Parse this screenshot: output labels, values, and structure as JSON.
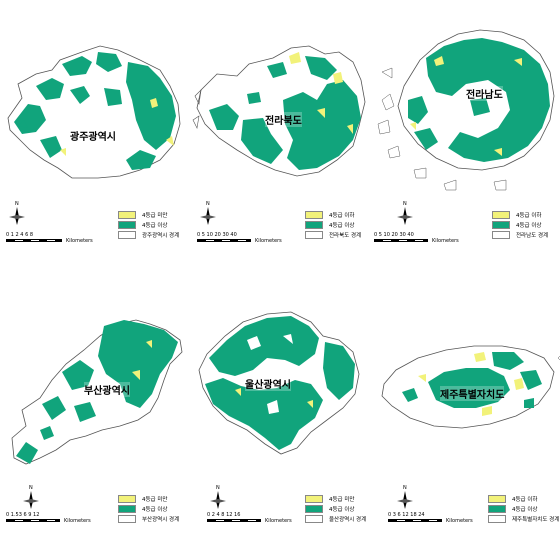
{
  "colors": {
    "below_grade4": "#f2f27a",
    "above_grade4": "#11a47c",
    "boundary_fill": "#ffffff",
    "boundary_stroke": "#555555"
  },
  "north_symbol": "north-arrow-compass",
  "panels": [
    {
      "region": "광주광역시",
      "legend": {
        "low": "4등급 미만",
        "high": "4등급 이상",
        "boundary": "광주광역시 경계"
      },
      "scale": {
        "ticks": "0 1 2    4     6     8",
        "unit": "Kilometers"
      }
    },
    {
      "region": "전라북도",
      "legend": {
        "low": "4등급 이하",
        "high": "4등급 이상",
        "boundary": "전라북도 경계"
      },
      "scale": {
        "ticks": "0 5 10   20    30   40",
        "unit": "Kilometers"
      }
    },
    {
      "region": "전라남도",
      "legend": {
        "low": "4등급 이하",
        "high": "4등급 이상",
        "boundary": "전라남도 경계"
      },
      "scale": {
        "ticks": "0 5 10   20    30   40",
        "unit": "Kilometers"
      }
    },
    {
      "region": "부산광역시",
      "legend": {
        "low": "4등급 미만",
        "high": "4등급 이상",
        "boundary": "부산광역시 경계"
      },
      "scale": {
        "ticks": "0 1.53    6     9    12",
        "unit": "Kilometers"
      }
    },
    {
      "region": "울산광역시",
      "legend": {
        "low": "4등급 미만",
        "high": "4등급 이상",
        "boundary": "울산광역시 경계"
      },
      "scale": {
        "ticks": "0 2 4    8    12   16",
        "unit": "Kilometers"
      }
    },
    {
      "region": "제주특별자치도",
      "legend": {
        "low": "4등급 이하",
        "high": "4등급 이상",
        "boundary": "제주특별자치도 경계"
      },
      "scale": {
        "ticks": "0 3 6   12    18   24",
        "unit": "Kilometers"
      }
    }
  ]
}
